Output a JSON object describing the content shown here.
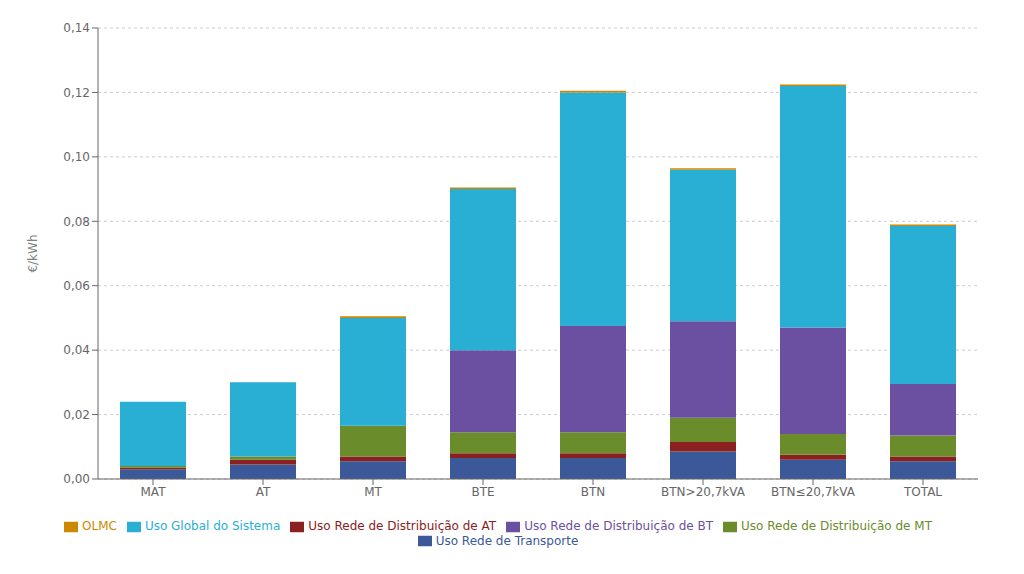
{
  "chart_data": {
    "type": "bar",
    "stacked": true,
    "grid": true,
    "legend": "bottom",
    "ylabel": "€/kWh",
    "categories": [
      "MAT",
      "AT",
      "MT",
      "BTE",
      "BTN",
      "BTN>20,7kVA",
      "BTN≤20,7kVA",
      "TOTAL"
    ],
    "series": [
      {
        "name": "Uso Rede de Transporte",
        "color": "#3B5998",
        "values": [
          0.003,
          0.0045,
          0.0055,
          0.0065,
          0.0065,
          0.0085,
          0.006,
          0.0055
        ]
      },
      {
        "name": "Uso Rede de Distribuição de AT",
        "color": "#8B2020",
        "values": [
          0.0005,
          0.0015,
          0.0015,
          0.0015,
          0.0015,
          0.003,
          0.0015,
          0.0015
        ]
      },
      {
        "name": "Uso Rede de Distribuição de MT",
        "color": "#6B8C2A",
        "values": [
          0.0005,
          0.001,
          0.0095,
          0.0065,
          0.0065,
          0.0075,
          0.0065,
          0.0065
        ]
      },
      {
        "name": "Uso Rede de Distribuição de BT",
        "color": "#6B4FA0",
        "values": [
          0.0,
          0.0,
          0.0,
          0.0255,
          0.033,
          0.03,
          0.033,
          0.016
        ]
      },
      {
        "name": "Uso Global do Sistema",
        "color": "#29AED4",
        "values": [
          0.02,
          0.023,
          0.0335,
          0.05,
          0.0725,
          0.047,
          0.075,
          0.049
        ]
      },
      {
        "name": "OLMC",
        "color": "#CC8800",
        "values": [
          0.0,
          0.0,
          0.0005,
          0.0005,
          0.0005,
          0.0005,
          0.0005,
          0.0005
        ]
      }
    ],
    "ylim": [
      0.0,
      0.14
    ],
    "yticks": [
      {
        "value": 0.0,
        "label": "0,00"
      },
      {
        "value": 0.02,
        "label": "0,02"
      },
      {
        "value": 0.04,
        "label": "0,04"
      },
      {
        "value": 0.06,
        "label": "0,06"
      },
      {
        "value": 0.08,
        "label": "0,08"
      },
      {
        "value": 0.1,
        "label": "0,10"
      },
      {
        "value": 0.12,
        "label": "0,12"
      },
      {
        "value": 0.14,
        "label": "0,14"
      }
    ]
  }
}
